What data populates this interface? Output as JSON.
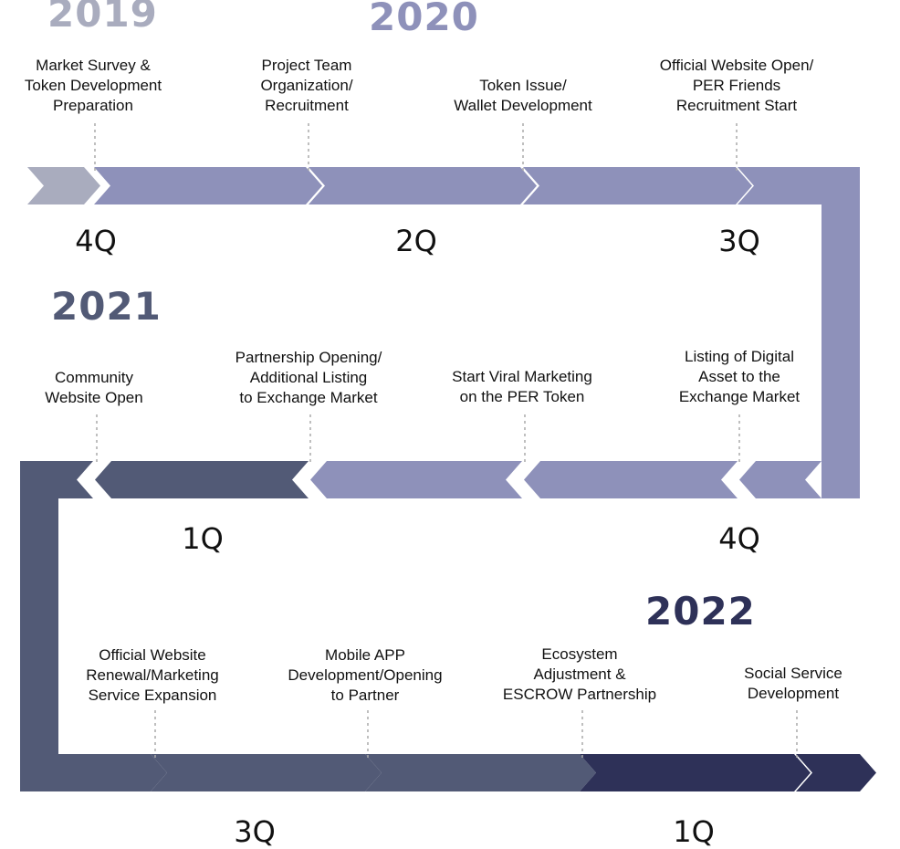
{
  "colors": {
    "gray": "#a9acbe",
    "lavender": "#8e91ba",
    "slate": "#525a76",
    "navy": "#2e3158",
    "year_2019": "#a9acbe",
    "year_2020": "#8e91ba",
    "year_2021": "#525a76",
    "year_2022": "#2e3158"
  },
  "years": [
    {
      "id": "2019",
      "label": "2019"
    },
    {
      "id": "2020",
      "label": "2020"
    },
    {
      "id": "2021",
      "label": "2021"
    },
    {
      "id": "2022",
      "label": "2022"
    }
  ],
  "quarters": [
    "4Q",
    "2Q",
    "3Q",
    "1Q",
    "4Q",
    "3Q",
    "1Q"
  ],
  "milestones": [
    {
      "lines": [
        "Market Survey &",
        "Token Development",
        "Preparation"
      ]
    },
    {
      "lines": [
        "Project Team",
        "Organization/",
        "Recruitment"
      ]
    },
    {
      "lines": [
        "Token Issue/",
        "Wallet Development"
      ]
    },
    {
      "lines": [
        "Official Website Open/",
        "PER Friends",
        "Recruitment Start"
      ]
    },
    {
      "lines": [
        "Community",
        "Website Open"
      ]
    },
    {
      "lines": [
        "Partnership Opening/",
        "Additional Listing",
        "to Exchange Market"
      ]
    },
    {
      "lines": [
        "Start Viral Marketing",
        "on the PER Token"
      ]
    },
    {
      "lines": [
        "Listing of Digital",
        "Asset to the",
        "Exchange Market"
      ]
    },
    {
      "lines": [
        "Official Website",
        "Renewal/Marketing",
        "Service Expansion"
      ]
    },
    {
      "lines": [
        "Mobile APP",
        "Development/Opening",
        "to Partner"
      ]
    },
    {
      "lines": [
        "Ecosystem",
        "Adjustment &",
        "ESCROW Partnership"
      ]
    },
    {
      "lines": [
        "Social Service",
        "Development"
      ]
    }
  ]
}
